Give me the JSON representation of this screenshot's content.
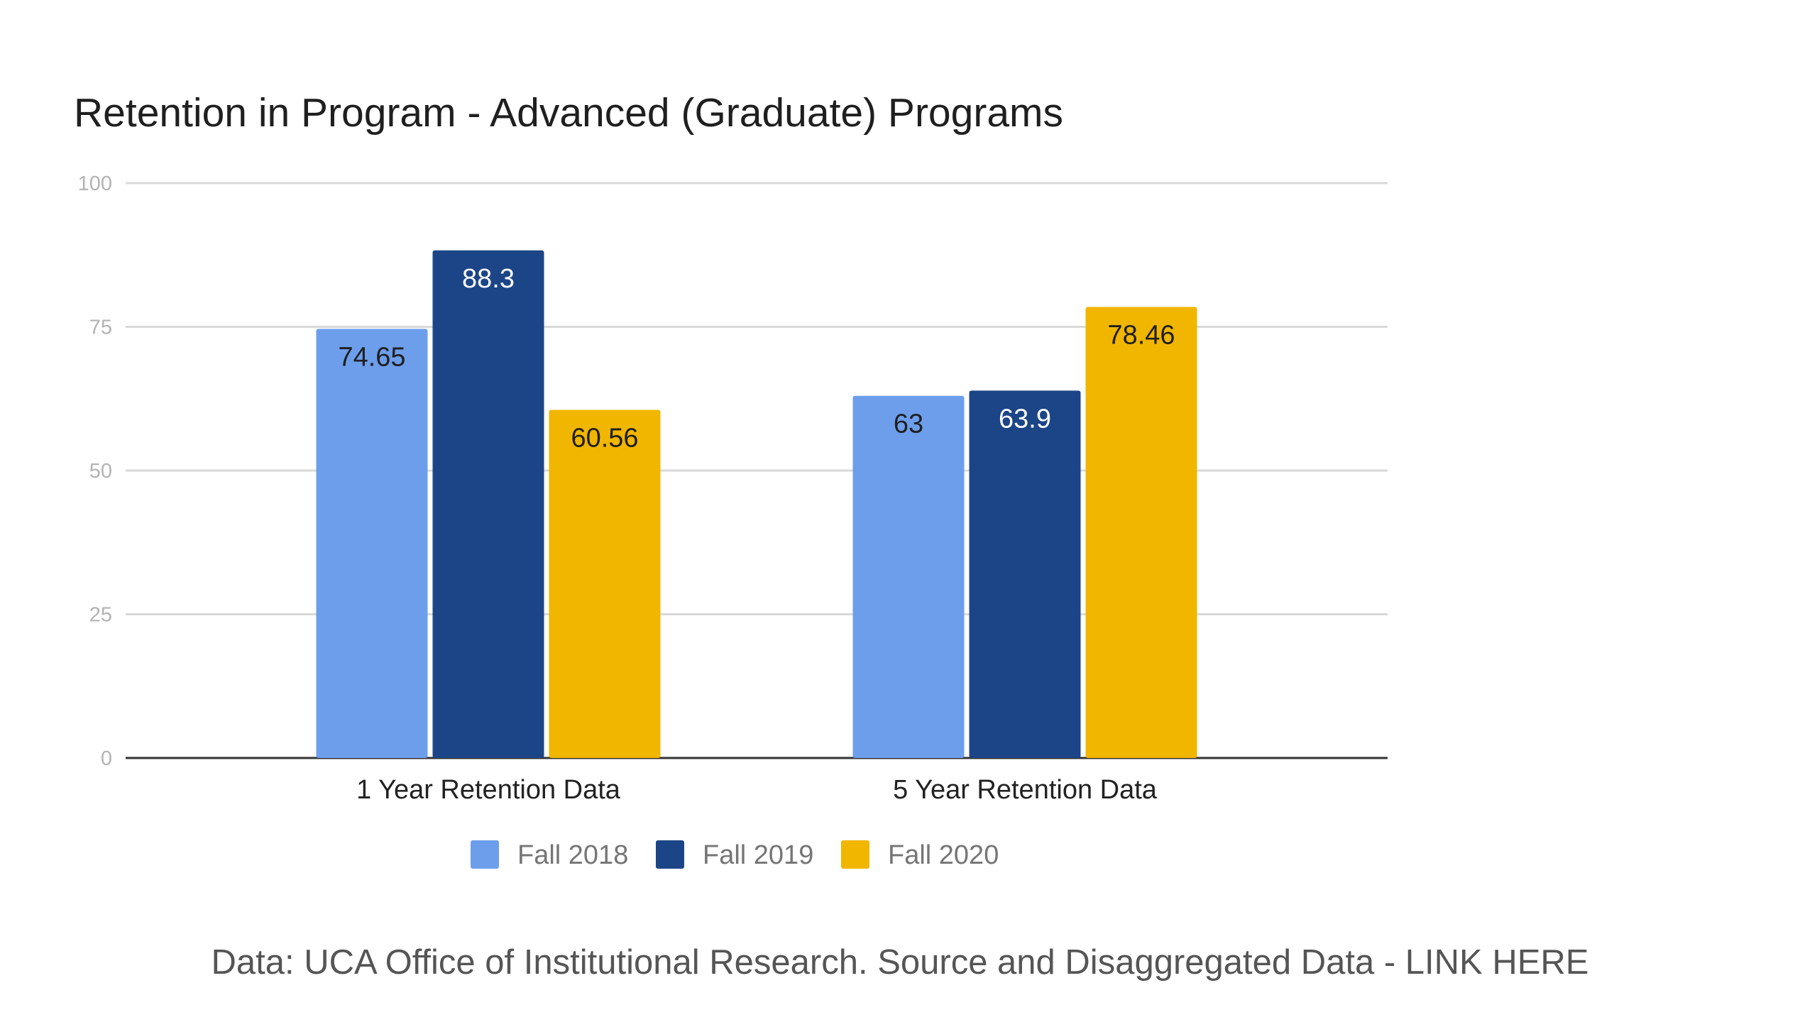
{
  "chart_data": {
    "type": "bar",
    "title": "Retention in Program - Advanced (Graduate) Programs",
    "xlabel": "",
    "ylabel": "",
    "ylim": [
      0,
      100
    ],
    "yticks": [
      "0",
      "25",
      "50",
      "75",
      "100"
    ],
    "grid": true,
    "legend_position": "bottom",
    "categories": [
      "1 Year Retention Data",
      "5 Year Retention Data"
    ],
    "series": [
      {
        "name": "Fall 2018",
        "values": [
          74.65,
          63
        ],
        "labels": [
          "74.65",
          "63"
        ],
        "color": "#6d9eeb",
        "label_color": "#1f1f1f"
      },
      {
        "name": "Fall 2019",
        "values": [
          88.3,
          63.9
        ],
        "labels": [
          "88.3",
          "63.9"
        ],
        "color": "#1c4587",
        "label_color": "#ffffff"
      },
      {
        "name": "Fall 2020",
        "values": [
          60.56,
          78.46
        ],
        "labels": [
          "60.56",
          "78.46"
        ],
        "color": "#f1b600",
        "label_color": "#1f1f1f"
      }
    ]
  },
  "footer": {
    "source_text": "Data: UCA Office of Institutional Research. Source and Disaggregated Data - LINK HERE"
  }
}
